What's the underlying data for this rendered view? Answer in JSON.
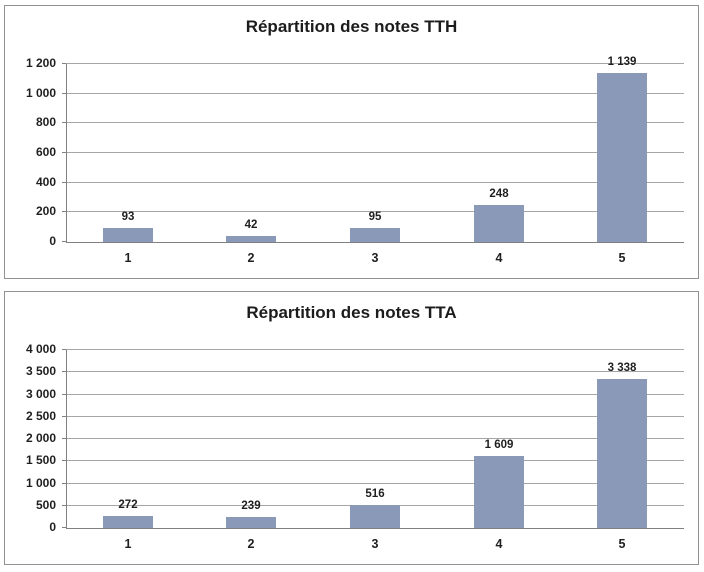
{
  "colors": {
    "bar_fill": "#8b99b8",
    "gridline": "#a6a6a6",
    "axis_line": "#808080",
    "panel_border": "#929292",
    "text": "#1f1f1f",
    "background": "#ffffff"
  },
  "chart_data": [
    {
      "type": "bar",
      "title": "Répartition des notes TTH",
      "categories": [
        "1",
        "2",
        "3",
        "4",
        "5"
      ],
      "values": [
        93,
        42,
        95,
        248,
        1139
      ],
      "value_labels": [
        "93",
        "42",
        "95",
        "248",
        "1 139"
      ],
      "xlabel": "",
      "ylabel": "",
      "ylim": [
        0,
        1200
      ],
      "ytick_step": 200,
      "ytick_labels": [
        "0",
        "200",
        "400",
        "600",
        "800",
        "1 000",
        "1 200"
      ],
      "grid": true,
      "legend": "none"
    },
    {
      "type": "bar",
      "title": "Répartition des notes TTA",
      "categories": [
        "1",
        "2",
        "3",
        "4",
        "5"
      ],
      "values": [
        272,
        239,
        516,
        1609,
        3338
      ],
      "value_labels": [
        "272",
        "239",
        "516",
        "1 609",
        "3 338"
      ],
      "xlabel": "",
      "ylabel": "",
      "ylim": [
        0,
        4000
      ],
      "ytick_step": 500,
      "ytick_labels": [
        "0",
        "500",
        "1 000",
        "1 500",
        "2 000",
        "2 500",
        "3 000",
        "3 500",
        "4 000"
      ],
      "grid": true,
      "legend": "none"
    }
  ]
}
